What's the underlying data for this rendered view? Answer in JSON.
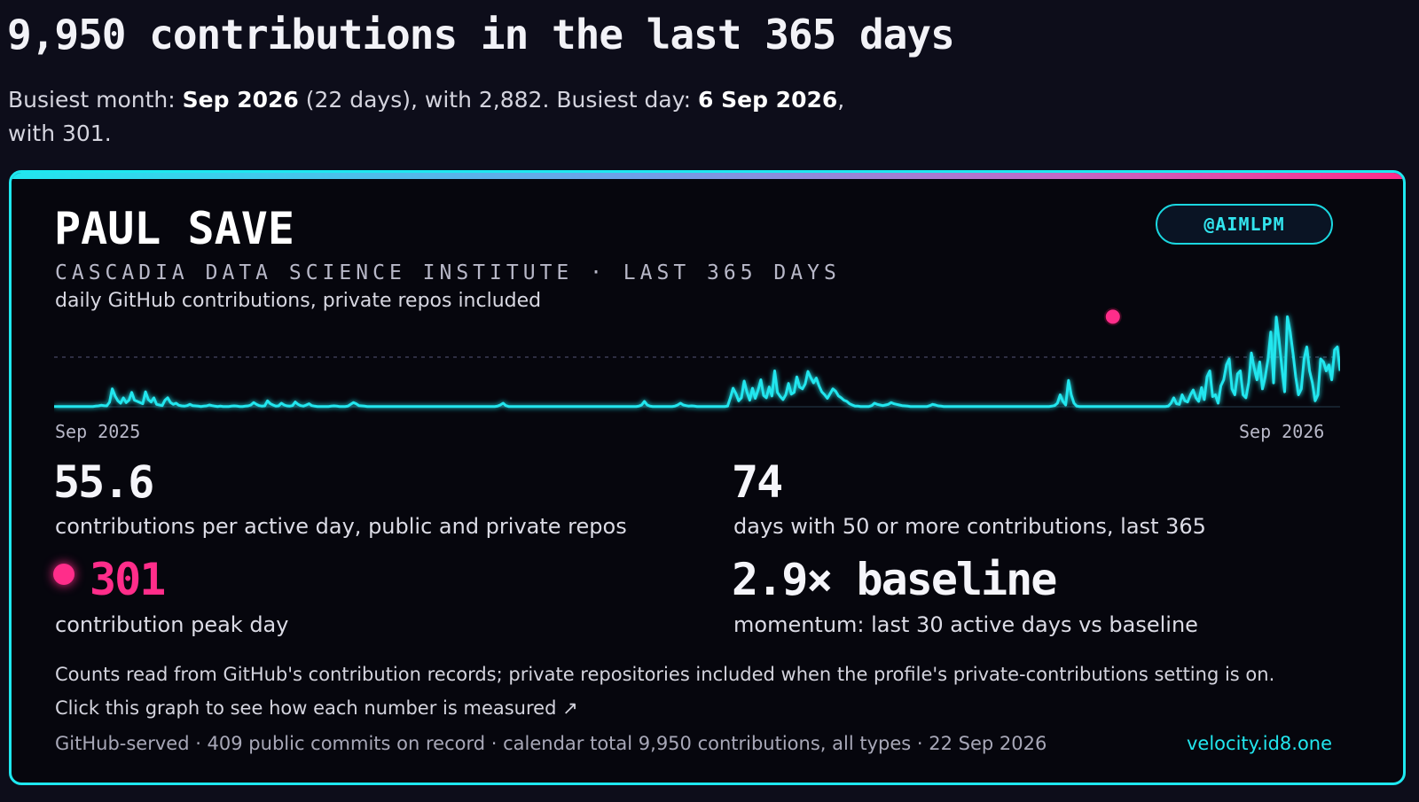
{
  "header": {
    "title": "9,950 contributions in the last 365 days",
    "busiest_prefix": "Busiest month: ",
    "busiest_month": "Sep 2026",
    "busiest_month_suffix": " (22 days), with 2,882. Busiest day: ",
    "busiest_day": "6 Sep 2026",
    "busiest_day_suffix": ", with 301."
  },
  "card": {
    "name": "PAUL SAVE",
    "handle": "@AIMLPM",
    "org_line": "CASCADIA DATA SCIENCE INSTITUTE · LAST 365 DAYS",
    "subtitle": "daily GitHub contributions, private repos included",
    "accent_color": "#22e6ee",
    "peak_color": "#ff2d8a",
    "stats": {
      "per_day_value": "55.6",
      "per_day_label": "contributions per active day, public and private repos",
      "days50_value": "74",
      "days50_label": "days with 50 or more contributions, last 365",
      "peak_value": "301",
      "peak_label": "contribution peak day",
      "momentum_value": "2.9× baseline",
      "momentum_label": "momentum: last 30 active days vs baseline"
    },
    "note": "Counts read from GitHub's contribution records; private repositories included when the profile's private-contributions setting is on.",
    "link_text": "Click this graph to see how each number is measured ↗",
    "footer": "GitHub-served · 409 public commits on record · calendar total 9,950 contributions, all types · 22 Sep 2026",
    "site": "velocity.id8.one"
  },
  "chart_data": {
    "type": "line",
    "xlabel": "",
    "ylabel": "",
    "x_tick_labels": [
      "Sep 2025",
      "Sep 2026"
    ],
    "ylim": [
      0,
      320
    ],
    "peak": {
      "day_index": 382,
      "value": 301
    },
    "series": [
      {
        "values": [
          1,
          1,
          1,
          1,
          1,
          1,
          1,
          1,
          1,
          1,
          1,
          1,
          1,
          1,
          1,
          2,
          3,
          5,
          4,
          3,
          15,
          60,
          36,
          20,
          12,
          30,
          14,
          22,
          48,
          22,
          18,
          14,
          10,
          50,
          24,
          16,
          30,
          8,
          6,
          4,
          22,
          30,
          14,
          8,
          12,
          5,
          3,
          2,
          4,
          8,
          4,
          3,
          2,
          1,
          2,
          3,
          6,
          4,
          2,
          1,
          2,
          1,
          1,
          1,
          2,
          3,
          2,
          1,
          1,
          2,
          3,
          6,
          14,
          8,
          4,
          2,
          3,
          20,
          10,
          6,
          2,
          3,
          12,
          6,
          3,
          2,
          4,
          16,
          8,
          4,
          2,
          6,
          10,
          4,
          2,
          1,
          1,
          1,
          1,
          1,
          2,
          3,
          2,
          1,
          1,
          1,
          2,
          8,
          14,
          10,
          4,
          3,
          2,
          1,
          1,
          1,
          1,
          1,
          1,
          1,
          1,
          1,
          1,
          1,
          1,
          1,
          1,
          1,
          1,
          1,
          1,
          1,
          1,
          1,
          1,
          1,
          1,
          1,
          1,
          1,
          1,
          1,
          1,
          1,
          1,
          1,
          1,
          1,
          1,
          1,
          1,
          1,
          1,
          1,
          1,
          1,
          1,
          1,
          1,
          1,
          2,
          6,
          12,
          4,
          1,
          1,
          1,
          1,
          1,
          1,
          1,
          1,
          1,
          1,
          1,
          1,
          1,
          1,
          1,
          1,
          1,
          1,
          1,
          1,
          1,
          1,
          1,
          1,
          1,
          1,
          1,
          1,
          1,
          1,
          1,
          1,
          1,
          1,
          1,
          1,
          1,
          1,
          1,
          1,
          1,
          1,
          1,
          1,
          1,
          1,
          1,
          2,
          6,
          18,
          6,
          2,
          1,
          1,
          1,
          1,
          1,
          1,
          1,
          1,
          2,
          6,
          12,
          6,
          4,
          2,
          3,
          2,
          1,
          1,
          1,
          1,
          1,
          1,
          1,
          1,
          1,
          1,
          1,
          2,
          30,
          62,
          44,
          20,
          30,
          86,
          48,
          22,
          62,
          28,
          56,
          90,
          38,
          30,
          66,
          36,
          120,
          48,
          34,
          24,
          40,
          78,
          42,
          48,
          100,
          66,
          60,
          76,
          118,
          98,
          80,
          96,
          70,
          50,
          40,
          28,
          44,
          60,
          52,
          36,
          30,
          22,
          18,
          10,
          6,
          2,
          2,
          1,
          1,
          1,
          1,
          4,
          12,
          8,
          6,
          4,
          6,
          8,
          14,
          10,
          8,
          6,
          4,
          3,
          2,
          1,
          1,
          1,
          1,
          1,
          1,
          1,
          4,
          8,
          6,
          3,
          2,
          1,
          1,
          1,
          1,
          1,
          1,
          1,
          1,
          1,
          1,
          1,
          1,
          1,
          1,
          1,
          1,
          1,
          1,
          1,
          1,
          1,
          1,
          1,
          1,
          1,
          1,
          1,
          1,
          1,
          1,
          1,
          1,
          1,
          1,
          1,
          1,
          1,
          1,
          1,
          2,
          4,
          12,
          40,
          18,
          6,
          88,
          40,
          12,
          2,
          1,
          1,
          1,
          1,
          1,
          1,
          1,
          1,
          1,
          1,
          1,
          1,
          1,
          1,
          1,
          1,
          1,
          1,
          1,
          1,
          1,
          1,
          1,
          1,
          1,
          1,
          1,
          1,
          1,
          1,
          1,
          1,
          2,
          12,
          30,
          10,
          8,
          40,
          20,
          16,
          40,
          56,
          30,
          18,
          64,
          24,
          100,
          120,
          34,
          40,
          12,
          70,
          90,
          140,
          160,
          60,
          40,
          110,
          120,
          40,
          30,
          80,
          180,
          130,
          90,
          150,
          60,
          100,
          160,
          250,
          80,
          300,
          220,
          130,
          50,
          301,
          250,
          180,
          100,
          40,
          60,
          160,
          200,
          120,
          80,
          20,
          40,
          160,
          150,
          120,
          140,
          90,
          190,
          200,
          120
        ]
      }
    ]
  }
}
